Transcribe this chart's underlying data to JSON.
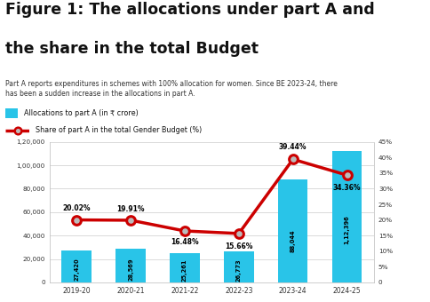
{
  "title_line1": "Figure 1: The allocations under part A and",
  "title_line2": "the share in the total Budget",
  "subtitle": "Part A reports expenditures in schemes with 100% allocation for women. Since BE 2023-24, there\nhas been a sudden increase in the allocations in part A.",
  "legend_bar": "Allocations to part A (in ₹ crore)",
  "legend_line": "Share of part A in the total Gender Budget (%)",
  "categories": [
    "2019-20",
    "2020-21",
    "2021-22",
    "2022-23",
    "2023-24",
    "2024-25"
  ],
  "bar_values": [
    27420,
    28569,
    25261,
    26773,
    88044,
    112396
  ],
  "bar_labels": [
    "27,420",
    "28,569",
    "25,261",
    "26,773",
    "88,044",
    "1,12,396"
  ],
  "line_values": [
    20.02,
    19.91,
    16.48,
    15.66,
    39.44,
    34.36
  ],
  "line_labels": [
    "20.02%",
    "19.91%",
    "16.48%",
    "15.66%",
    "39.44%",
    "34.36%"
  ],
  "bar_color": "#29C4E8",
  "line_color": "#CC0000",
  "marker_face_color": "#BBBBBB",
  "ylim_left": [
    0,
    120000
  ],
  "ylim_right": [
    0,
    45
  ],
  "yticks_left": [
    0,
    20000,
    40000,
    60000,
    80000,
    100000,
    120000
  ],
  "ytick_labels_left": [
    "0",
    "20,000",
    "40,000",
    "60,000",
    "80,000",
    "1,00,000",
    "1,20,000"
  ],
  "yticks_right": [
    0,
    5,
    10,
    15,
    20,
    25,
    30,
    35,
    40,
    45
  ],
  "ytick_labels_right": [
    "0",
    "5%",
    "10%",
    "15%",
    "20%",
    "25%",
    "30%",
    "35%",
    "40%",
    "45%"
  ],
  "bg_color": "#FFFFFF"
}
